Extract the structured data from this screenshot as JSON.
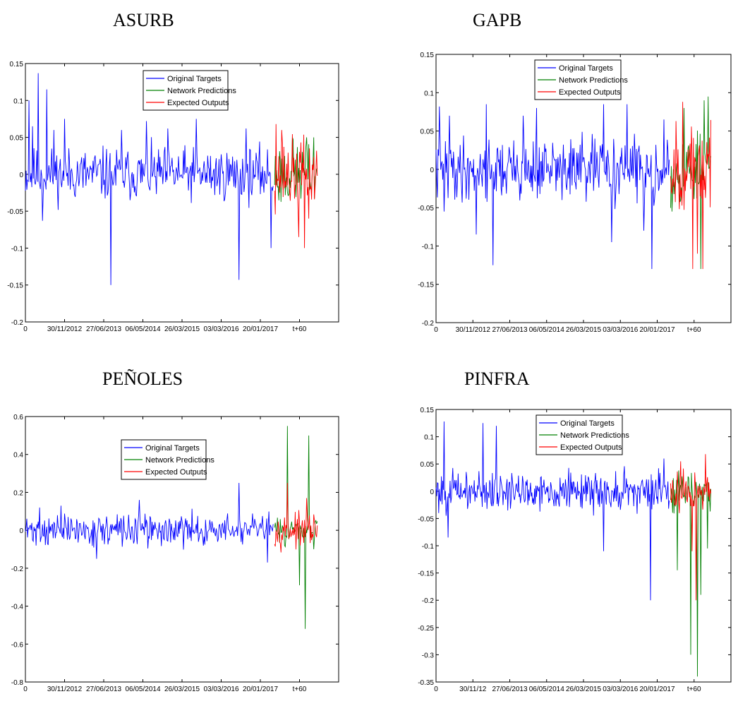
{
  "colors": {
    "original": "#0000ff",
    "network": "#008000",
    "expected": "#ff0000",
    "axis": "#000000"
  },
  "legend": [
    "Original Targets",
    "Network Predictions",
    "Expected Outputs"
  ],
  "chart_data": [
    {
      "type": "line",
      "title": "ASURB",
      "legend_position": "top-center",
      "ylim": [
        -0.2,
        0.15
      ],
      "yticks": [
        "0.15",
        "0.1",
        "0.05",
        "0",
        "-0.05",
        "-0.1",
        "-0.15",
        "-0.2"
      ],
      "ytick_values": [
        0.15,
        0.1,
        0.05,
        0,
        -0.05,
        -0.1,
        -0.15,
        -0.2
      ],
      "xticks": [
        "0",
        "30/11/2012",
        "27/06/2013",
        "06/05/2014",
        "26/03/2015",
        "03/03/2016",
        "20/01/2017",
        "t+60"
      ],
      "series": [
        {
          "name": "Original Targets",
          "x_range": [
            0,
            348
          ],
          "seed": 11,
          "scale": 0.022,
          "spikes": [
            [
              5,
              0.1
            ],
            [
              10,
              0.065
            ],
            [
              18,
              0.137
            ],
            [
              24,
              -0.063
            ],
            [
              30,
              0.115
            ],
            [
              40,
              0.06
            ],
            [
              55,
              0.075
            ],
            [
              120,
              -0.15
            ],
            [
              135,
              0.06
            ],
            [
              170,
              0.072
            ],
            [
              200,
              0.062
            ],
            [
              240,
              0.075
            ],
            [
              300,
              -0.143
            ],
            [
              310,
              0.062
            ],
            [
              345,
              -0.1
            ]
          ]
        },
        {
          "name": "Network Predictions",
          "x_range": [
            350,
            410
          ],
          "seed": 23,
          "scale": 0.028,
          "spikes": [
            [
              375,
              0.05
            ],
            [
              395,
              0.05
            ],
            [
              405,
              0.05
            ]
          ]
        },
        {
          "name": "Expected Outputs",
          "x_range": [
            350,
            410
          ],
          "seed": 37,
          "scale": 0.03,
          "spikes": [
            [
              352,
              0.068
            ],
            [
              360,
              0.06
            ],
            [
              384,
              -0.085
            ],
            [
              392,
              -0.1
            ],
            [
              398,
              -0.06
            ]
          ]
        }
      ]
    },
    {
      "type": "line",
      "title": "GAPB",
      "legend_position": "top-center",
      "ylim": [
        -0.2,
        0.15
      ],
      "yticks": [
        "0.15",
        "0.1",
        "0.05",
        "0",
        "-0.05",
        "-0.1",
        "-0.15",
        "-0.2"
      ],
      "ytick_values": [
        0.15,
        0.1,
        0.05,
        0,
        -0.05,
        -0.1,
        -0.15,
        -0.2
      ],
      "xticks": [
        "0",
        "30/11/2012",
        "27/06/2013",
        "06/05/2014",
        "26/03/2015",
        "03/03/2016",
        "20/01/2017",
        "t+60"
      ],
      "series": [
        {
          "name": "Original Targets",
          "x_range": [
            0,
            348
          ],
          "seed": 41,
          "scale": 0.025,
          "spikes": [
            [
              5,
              0.082
            ],
            [
              12,
              -0.055
            ],
            [
              20,
              0.07
            ],
            [
              60,
              -0.085
            ],
            [
              75,
              0.085
            ],
            [
              85,
              -0.125
            ],
            [
              130,
              0.07
            ],
            [
              150,
              0.08
            ],
            [
              250,
              0.085
            ],
            [
              262,
              -0.095
            ],
            [
              285,
              0.085
            ],
            [
              310,
              -0.08
            ],
            [
              322,
              -0.13
            ],
            [
              340,
              0.065
            ]
          ]
        },
        {
          "name": "Network Predictions",
          "x_range": [
            350,
            410
          ],
          "seed": 53,
          "scale": 0.03,
          "spikes": [
            [
              352,
              -0.055
            ],
            [
              370,
              0.08
            ],
            [
              395,
              -0.13
            ],
            [
              400,
              0.09
            ],
            [
              406,
              0.095
            ]
          ]
        },
        {
          "name": "Expected Outputs",
          "x_range": [
            350,
            410
          ],
          "seed": 67,
          "scale": 0.03,
          "spikes": [
            [
              358,
              0.063
            ],
            [
              368,
              0.088
            ],
            [
              383,
              -0.13
            ],
            [
              390,
              -0.11
            ],
            [
              398,
              -0.13
            ]
          ]
        }
      ]
    },
    {
      "type": "line",
      "title": "PEÑOLES",
      "legend_position": "top-center",
      "ylim": [
        -0.8,
        0.6
      ],
      "yticks": [
        "0.6",
        "0.4",
        "0.2",
        "0",
        "-0.2",
        "-0.4",
        "-0.6",
        "-0.8"
      ],
      "ytick_values": [
        0.6,
        0.4,
        0.2,
        0,
        -0.2,
        -0.4,
        -0.6,
        -0.8
      ],
      "xticks": [
        "0",
        "30/11/2012",
        "27/06/2013",
        "06/05/2014",
        "26/03/2015",
        "03/03/2016",
        "20/01/2017",
        "t+60"
      ],
      "series": [
        {
          "name": "Original Targets",
          "x_range": [
            0,
            348
          ],
          "seed": 71,
          "scale": 0.05,
          "spikes": [
            [
              20,
              0.12
            ],
            [
              50,
              0.13
            ],
            [
              100,
              -0.15
            ],
            [
              160,
              0.16
            ],
            [
              300,
              0.25
            ],
            [
              340,
              -0.17
            ]
          ]
        },
        {
          "name": "Network Predictions",
          "x_range": [
            350,
            410
          ],
          "seed": 83,
          "scale": 0.04,
          "spikes": [
            [
              368,
              0.55
            ],
            [
              385,
              -0.29
            ],
            [
              393,
              -0.52
            ],
            [
              398,
              0.5
            ],
            [
              405,
              -0.1
            ]
          ]
        },
        {
          "name": "Expected Outputs",
          "x_range": [
            350,
            410
          ],
          "seed": 97,
          "scale": 0.05,
          "spikes": [
            [
              368,
              0.25
            ],
            [
              386,
              -0.08
            ],
            [
              395,
              0.17
            ]
          ]
        }
      ]
    },
    {
      "type": "line",
      "title": "PINFRA",
      "legend_position": "top-center",
      "ylim": [
        -0.35,
        0.15
      ],
      "yticks": [
        "0.15",
        "0.1",
        "0.05",
        "0",
        "-0.05",
        "-0.1",
        "-0.15",
        "-0.2",
        "-0.25",
        "-0.3",
        "-0.35"
      ],
      "ytick_values": [
        0.15,
        0.1,
        0.05,
        0,
        -0.05,
        -0.1,
        -0.15,
        -0.2,
        -0.25,
        -0.3,
        -0.35
      ],
      "xticks": [
        "0",
        "30/11/12",
        "27/06/2013",
        "06/05/2014",
        "26/03/2015",
        "03/03/2016",
        "20/01/2017",
        "t+60"
      ],
      "series": [
        {
          "name": "Original Targets",
          "x_range": [
            0,
            348
          ],
          "seed": 101,
          "scale": 0.022,
          "spikes": [
            [
              12,
              0.128
            ],
            [
              18,
              -0.085
            ],
            [
              70,
              0.125
            ],
            [
              90,
              0.12
            ],
            [
              250,
              -0.11
            ],
            [
              320,
              -0.2
            ],
            [
              340,
              0.06
            ]
          ]
        },
        {
          "name": "Network Predictions",
          "x_range": [
            350,
            410
          ],
          "seed": 113,
          "scale": 0.02,
          "spikes": [
            [
              360,
              -0.145
            ],
            [
              380,
              -0.3
            ],
            [
              390,
              -0.34
            ],
            [
              395,
              -0.19
            ],
            [
              405,
              -0.105
            ]
          ]
        },
        {
          "name": "Expected Outputs",
          "x_range": [
            350,
            410
          ],
          "seed": 127,
          "scale": 0.025,
          "spikes": [
            [
              365,
              0.055
            ],
            [
              382,
              -0.11
            ],
            [
              388,
              -0.2
            ],
            [
              402,
              0.068
            ]
          ]
        }
      ]
    }
  ]
}
